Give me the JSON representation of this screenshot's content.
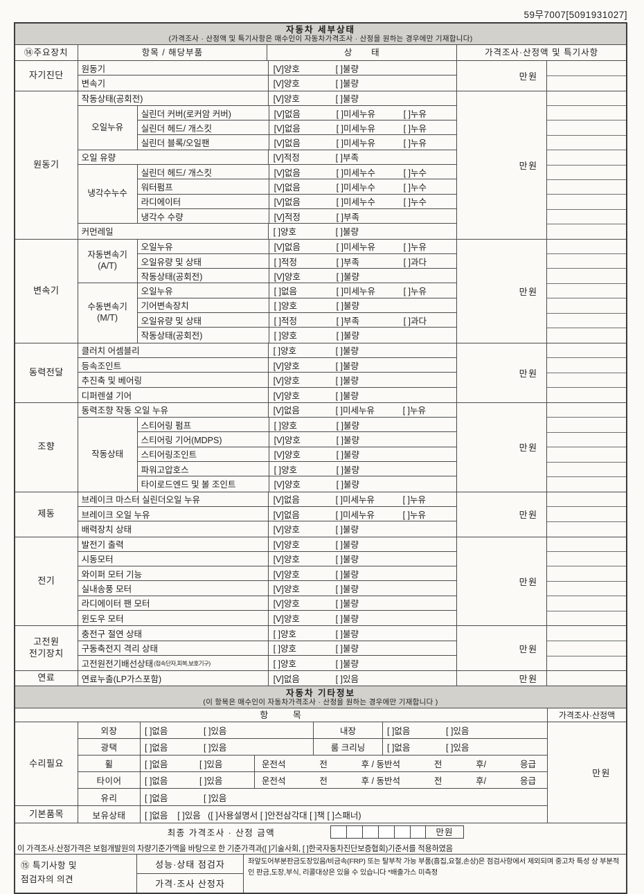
{
  "doc_number": "59무7007[5091931027]",
  "main_table": {
    "title": "자동차 세부상태",
    "subtitle": "(가격조사 · 산정액 및 특기사항은 매수인이 자동차가격조사 · 산정을 원하는 경우에만 기재합니다)",
    "headers": {
      "device": "⑭주요장치",
      "item": "항목 / 해당부품",
      "state": "상      태",
      "price": "가격조사·산정액 및 특기사항"
    },
    "sections": [
      {
        "device": "자기진단",
        "price": "만원",
        "rows": [
          {
            "part": "원동기",
            "opts": [
              {
                "c": 1,
                "t": "양호"
              },
              {
                "c": 0,
                "t": "불량"
              }
            ]
          },
          {
            "part": "변속기",
            "opts": [
              {
                "c": 1,
                "t": "양호"
              },
              {
                "c": 0,
                "t": "불량"
              }
            ]
          }
        ]
      },
      {
        "device": "원동기",
        "price": "만원",
        "rows": [
          {
            "part": "작동상태(공회전)",
            "opts": [
              {
                "c": 1,
                "t": "양호"
              },
              {
                "c": 0,
                "t": "불량"
              }
            ]
          },
          {
            "group": "오일누유",
            "span": 3,
            "part": "실린더 커버(로커암 커버)",
            "opts": [
              {
                "c": 1,
                "t": "없음"
              },
              {
                "c": 0,
                "t": "미세누유"
              },
              {
                "c": 0,
                "t": "누유"
              }
            ]
          },
          {
            "part": "실린더 헤드/ 개스킷",
            "opts": [
              {
                "c": 1,
                "t": "없음"
              },
              {
                "c": 0,
                "t": "미세누유"
              },
              {
                "c": 0,
                "t": "누유"
              }
            ]
          },
          {
            "part": "실린더 블록/오일팬",
            "opts": [
              {
                "c": 1,
                "t": "없음"
              },
              {
                "c": 0,
                "t": "미세누유"
              },
              {
                "c": 0,
                "t": "누유"
              }
            ]
          },
          {
            "part": "오일 유량",
            "opts": [
              {
                "c": 1,
                "t": "적정"
              },
              {
                "c": 0,
                "t": "부족"
              }
            ]
          },
          {
            "group": "냉각수누수",
            "span": 4,
            "part": "실린더 헤드/ 개스킷",
            "opts": [
              {
                "c": 1,
                "t": "없음"
              },
              {
                "c": 0,
                "t": "미세누수"
              },
              {
                "c": 0,
                "t": "누수"
              }
            ]
          },
          {
            "part": "워터펌프",
            "opts": [
              {
                "c": 1,
                "t": "없음"
              },
              {
                "c": 0,
                "t": "미세누수"
              },
              {
                "c": 0,
                "t": "누수"
              }
            ]
          },
          {
            "part": "라디에이터",
            "opts": [
              {
                "c": 1,
                "t": "없음"
              },
              {
                "c": 0,
                "t": "미세누수"
              },
              {
                "c": 0,
                "t": "누수"
              }
            ]
          },
          {
            "part": "냉각수 수량",
            "opts": [
              {
                "c": 1,
                "t": "적정"
              },
              {
                "c": 0,
                "t": "부족"
              }
            ]
          },
          {
            "part": "커먼레일",
            "opts": [
              {
                "c": 0,
                "t": "양호"
              },
              {
                "c": 0,
                "t": "불량"
              }
            ]
          }
        ]
      },
      {
        "device": "변속기",
        "price": "만원",
        "rows": [
          {
            "group": "자동변속기\n(A/T)",
            "span": 3,
            "part": "오일누유",
            "opts": [
              {
                "c": 1,
                "t": "없음"
              },
              {
                "c": 0,
                "t": "미세누유"
              },
              {
                "c": 0,
                "t": "누유"
              }
            ]
          },
          {
            "part": "오일유량 및 상태",
            "opts": [
              {
                "c": 0,
                "t": "적정"
              },
              {
                "c": 0,
                "t": "부족"
              },
              {
                "c": 0,
                "t": "과다"
              }
            ]
          },
          {
            "part": "작동상태(공회전)",
            "opts": [
              {
                "c": 1,
                "t": "양호"
              },
              {
                "c": 0,
                "t": "불량"
              }
            ]
          },
          {
            "group": "수동변속기\n(M/T)",
            "span": 4,
            "part": "오일누유",
            "opts": [
              {
                "c": 0,
                "t": "없음"
              },
              {
                "c": 0,
                "t": "미세누유"
              },
              {
                "c": 0,
                "t": "누유"
              }
            ]
          },
          {
            "part": "기어변속장치",
            "opts": [
              {
                "c": 0,
                "t": "양호"
              },
              {
                "c": 0,
                "t": "불량"
              }
            ]
          },
          {
            "part": "오일유량 및 상태",
            "opts": [
              {
                "c": 0,
                "t": "적정"
              },
              {
                "c": 0,
                "t": "부족"
              },
              {
                "c": 0,
                "t": "과다"
              }
            ]
          },
          {
            "part": "작동상태(공회전)",
            "opts": [
              {
                "c": 0,
                "t": "양호"
              },
              {
                "c": 0,
                "t": "불량"
              }
            ]
          }
        ]
      },
      {
        "device": "동력전달",
        "price": "만원",
        "rows": [
          {
            "part": "클러치 어셈블리",
            "opts": [
              {
                "c": 0,
                "t": "양호"
              },
              {
                "c": 0,
                "t": "불량"
              }
            ]
          },
          {
            "part": "등속조인트",
            "opts": [
              {
                "c": 1,
                "t": "양호"
              },
              {
                "c": 0,
                "t": "불량"
              }
            ]
          },
          {
            "part": "추진축 및 베어링",
            "opts": [
              {
                "c": 1,
                "t": "양호"
              },
              {
                "c": 0,
                "t": "불량"
              }
            ]
          },
          {
            "part": "디퍼렌셜 기어",
            "opts": [
              {
                "c": 1,
                "t": "양호"
              },
              {
                "c": 0,
                "t": "불량"
              }
            ]
          }
        ]
      },
      {
        "device": "조향",
        "price": "만원",
        "rows": [
          {
            "part": "동력조향 작동 오일 누유",
            "opts": [
              {
                "c": 1,
                "t": "없음"
              },
              {
                "c": 0,
                "t": "미세누유"
              },
              {
                "c": 0,
                "t": "누유"
              }
            ]
          },
          {
            "group": "작동상태",
            "span": 5,
            "part": "스티어링 펌프",
            "opts": [
              {
                "c": 0,
                "t": "양호"
              },
              {
                "c": 0,
                "t": "불량"
              }
            ]
          },
          {
            "part": "스티어링 기어(MDPS)",
            "opts": [
              {
                "c": 1,
                "t": "양호"
              },
              {
                "c": 0,
                "t": "불량"
              }
            ]
          },
          {
            "part": "스티어링조인트",
            "opts": [
              {
                "c": 1,
                "t": "양호"
              },
              {
                "c": 0,
                "t": "불량"
              }
            ]
          },
          {
            "part": "파워고압호스",
            "opts": [
              {
                "c": 0,
                "t": "양호"
              },
              {
                "c": 0,
                "t": "불량"
              }
            ]
          },
          {
            "part": "타이로드엔드 및 볼 조인트",
            "opts": [
              {
                "c": 1,
                "t": "양호"
              },
              {
                "c": 0,
                "t": "불량"
              }
            ]
          }
        ]
      },
      {
        "device": "제동",
        "price": "만원",
        "rows": [
          {
            "part": "브레이크 마스터 실린더오일 누유",
            "opts": [
              {
                "c": 1,
                "t": "없음"
              },
              {
                "c": 0,
                "t": "미세누유"
              },
              {
                "c": 0,
                "t": "누유"
              }
            ]
          },
          {
            "part": "브레이크 오일 누유",
            "opts": [
              {
                "c": 1,
                "t": "없음"
              },
              {
                "c": 0,
                "t": "미세누유"
              },
              {
                "c": 0,
                "t": "누유"
              }
            ]
          },
          {
            "part": "배력장치 상태",
            "opts": [
              {
                "c": 1,
                "t": "양호"
              },
              {
                "c": 0,
                "t": "불량"
              }
            ]
          }
        ]
      },
      {
        "device": "전기",
        "price": "만원",
        "rows": [
          {
            "part": "발전기 출력",
            "opts": [
              {
                "c": 1,
                "t": "양호"
              },
              {
                "c": 0,
                "t": "불량"
              }
            ]
          },
          {
            "part": "시동모터",
            "opts": [
              {
                "c": 1,
                "t": "양호"
              },
              {
                "c": 0,
                "t": "불량"
              }
            ]
          },
          {
            "part": "와이퍼 모터 기능",
            "opts": [
              {
                "c": 1,
                "t": "양호"
              },
              {
                "c": 0,
                "t": "불량"
              }
            ]
          },
          {
            "part": "실내송풍 모터",
            "opts": [
              {
                "c": 1,
                "t": "양호"
              },
              {
                "c": 0,
                "t": "불량"
              }
            ]
          },
          {
            "part": "라디에이터 팬 모터",
            "opts": [
              {
                "c": 1,
                "t": "양호"
              },
              {
                "c": 0,
                "t": "불량"
              }
            ]
          },
          {
            "part": "윈도우 모터",
            "opts": [
              {
                "c": 1,
                "t": "양호"
              },
              {
                "c": 0,
                "t": "불량"
              }
            ]
          }
        ]
      },
      {
        "device": "고전원\n전기장치",
        "price": "만원",
        "rows": [
          {
            "part": "충전구 절연 상태",
            "opts": [
              {
                "c": 0,
                "t": "양호"
              },
              {
                "c": 0,
                "t": "불량"
              }
            ]
          },
          {
            "part": "구동축전지 격리 상태",
            "opts": [
              {
                "c": 0,
                "t": "양호"
              },
              {
                "c": 0,
                "t": "불량"
              }
            ]
          },
          {
            "part": "고전원전기배선상태",
            "part_small": "(접속단자,피복,보호기구)",
            "opts": [
              {
                "c": 0,
                "t": "양호"
              },
              {
                "c": 0,
                "t": "불량"
              }
            ]
          }
        ]
      },
      {
        "device": "연료",
        "price": "만원",
        "rows": [
          {
            "part": "연료누출(LP가스포함)",
            "opts": [
              {
                "c": 1,
                "t": "없음"
              },
              {
                "c": 0,
                "t": "있음"
              }
            ]
          }
        ]
      }
    ]
  },
  "other_info": {
    "title": "자동차 기타정보",
    "subtitle": "(이 항목은 매수인이 자동차가격조사 · 산정을 원하는 경우에만 기재합니다 )",
    "header_item": "항      목",
    "header_price": "가격조사·산정액",
    "price": "만원",
    "sections": [
      {
        "device": "수리필요",
        "rows": [
          {
            "name": "외장",
            "cells": [
              {
                "opts": [
                  {
                    "c": 0,
                    "t": "없음"
                  },
                  {
                    "c": 0,
                    "t": "있음"
                  }
                ]
              },
              {
                "label": "내장"
              },
              {
                "opts": [
                  {
                    "c": 0,
                    "t": "없음"
                  },
                  {
                    "c": 0,
                    "t": "있음"
                  }
                ]
              }
            ]
          },
          {
            "name": "광택",
            "cells": [
              {
                "opts": [
                  {
                    "c": 0,
                    "t": "없음"
                  },
                  {
                    "c": 0,
                    "t": "있음"
                  }
                ]
              },
              {
                "label": "룸 크리닝"
              },
              {
                "opts": [
                  {
                    "c": 0,
                    "t": "없음"
                  },
                  {
                    "c": 0,
                    "t": "있음"
                  }
                ]
              }
            ]
          },
          {
            "name": "휠",
            "cells": [
              {
                "opts": [
                  {
                    "c": 0,
                    "t": "없음"
                  },
                  {
                    "c": 0,
                    "t": "있음"
                  }
                ]
              },
              {
                "seat": [
                  "운전석",
                  "전",
                  "후 / 동반석",
                  "전",
                  "후/",
                  "응급"
                ]
              }
            ]
          },
          {
            "name": "타이어",
            "cells": [
              {
                "opts": [
                  {
                    "c": 0,
                    "t": "없음"
                  },
                  {
                    "c": 0,
                    "t": "있음"
                  }
                ]
              },
              {
                "seat": [
                  "운전석",
                  "전",
                  "후 / 동반석",
                  "전",
                  "후/",
                  "응급"
                ]
              }
            ]
          },
          {
            "name": "유리",
            "cells": [
              {
                "opts": [
                  {
                    "c": 0,
                    "t": "없음"
                  },
                  {
                    "c": 0,
                    "t": "있음"
                  }
                ]
              }
            ]
          }
        ]
      },
      {
        "device": "기본품목",
        "rows": [
          {
            "name": "보유상태",
            "cells": [
              {
                "text": "[ ]없음    [ ]있음   ([ ]사용설명서 [ ]안전삼각대 [ ]책 [ ]스패너)"
              }
            ]
          }
        ]
      }
    ]
  },
  "final_price": {
    "label": "최종 가격조사 · 산정 금액",
    "box_count": 6,
    "unit": "만원"
  },
  "standards_note": "이 가격조사.산정가격은 보험개발원의 차량기준가액을 바탕으로 한 기준가격과([ ]기술사회, [ ]한국자동차진단보증협회)기준서를 적용하였음",
  "opinion": {
    "label": "⑮ 특기사항 및\n점검자의 의견",
    "inspector_row": "성능·상태 점검자",
    "appraiser_row": "가격·조사 산정자",
    "note": "좌앞도어부분판금도장있음/비금속(FRP) 또는 탈부착 가능 부품(흠집,요철,손상)은 점검사항에서 제외되며 중고차 특성 상 부분적인 판금,도장,부식, 리콜대상은 있을 수 있습니다 *배출가스 미측정"
  }
}
